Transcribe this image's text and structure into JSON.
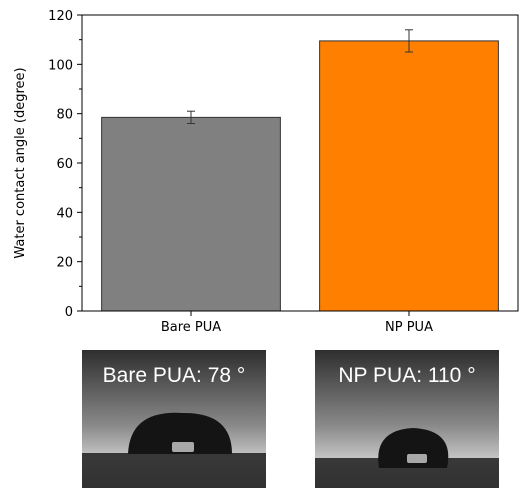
{
  "chart_data": {
    "type": "bar",
    "categories": [
      "Bare PUA",
      "NP PUA"
    ],
    "values": [
      78.5,
      109.5
    ],
    "errors": [
      2.5,
      4.5
    ],
    "colors": [
      "#808080",
      "#ff8000"
    ],
    "ylabel": "Water contact angle (degree)",
    "xlabel": "",
    "ylim": [
      0,
      120
    ],
    "yticks": [
      0,
      20,
      40,
      60,
      80,
      100,
      120
    ],
    "grid": false
  },
  "photos": [
    {
      "label": "Bare PUA",
      "value": "78",
      "unit": "°"
    },
    {
      "label": "NP PUA",
      "value": "110",
      "unit": "°"
    }
  ]
}
